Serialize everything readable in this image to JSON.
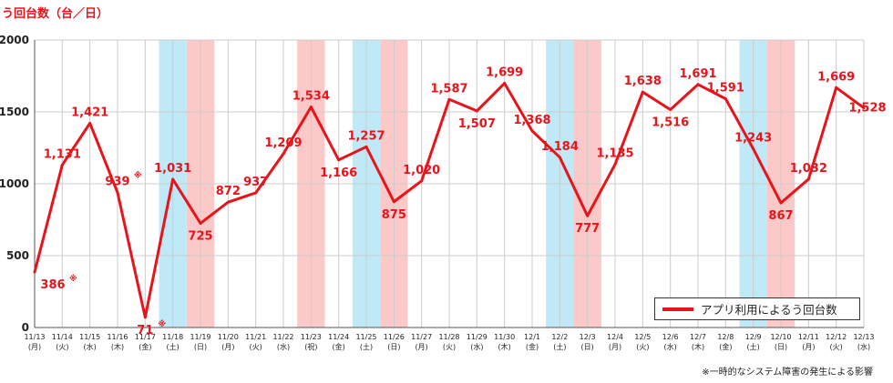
{
  "y_title": "う回台数（台／日）",
  "footnote": "※一時的なシステム障害の発生による影響",
  "legend_label": "アプリ利用によるう回台数",
  "colors": {
    "line": "#e8141b",
    "label": "#e8141b",
    "saturday_band": "#bfe9f7",
    "holiday_band": "#fcc9c9",
    "grid": "#cccccc"
  },
  "chart_data": {
    "type": "line",
    "ylim": [
      0,
      2000
    ],
    "y_ticks": [
      "0",
      "500",
      "1000",
      "1500",
      "2000"
    ],
    "y_tick_values": [
      0,
      500,
      1000,
      1500,
      2000
    ],
    "grid": true,
    "legend_position": "bottom-right",
    "x": [
      {
        "date": "11/13",
        "day": "(月)"
      },
      {
        "date": "11/14",
        "day": "(火)"
      },
      {
        "date": "11/15",
        "day": "(水)"
      },
      {
        "date": "11/16",
        "day": "(木)"
      },
      {
        "date": "11/17",
        "day": "(金)"
      },
      {
        "date": "11/18",
        "day": "(土)"
      },
      {
        "date": "11/19",
        "day": "(日)"
      },
      {
        "date": "11/20",
        "day": "(月)"
      },
      {
        "date": "11/21",
        "day": "(火)"
      },
      {
        "date": "11/22",
        "day": "(水)"
      },
      {
        "date": "11/23",
        "day": "(祝)"
      },
      {
        "date": "11/24",
        "day": "(金)"
      },
      {
        "date": "11/25",
        "day": "(土)"
      },
      {
        "date": "11/26",
        "day": "(日)"
      },
      {
        "date": "11/27",
        "day": "(月)"
      },
      {
        "date": "11/28",
        "day": "(火)"
      },
      {
        "date": "11/29",
        "day": "(水)"
      },
      {
        "date": "11/30",
        "day": "(木)"
      },
      {
        "date": "12/1",
        "day": "(金)"
      },
      {
        "date": "12/2",
        "day": "(土)"
      },
      {
        "date": "12/3",
        "day": "(日)"
      },
      {
        "date": "12/4",
        "day": "(月)"
      },
      {
        "date": "12/5",
        "day": "(火)"
      },
      {
        "date": "12/6",
        "day": "(水)"
      },
      {
        "date": "12/7",
        "day": "(木)"
      },
      {
        "date": "12/8",
        "day": "(金)"
      },
      {
        "date": "12/9",
        "day": "(土)"
      },
      {
        "date": "12/10",
        "day": "(日)"
      },
      {
        "date": "12/11",
        "day": "(月)"
      },
      {
        "date": "12/12",
        "day": "(火)"
      },
      {
        "date": "12/13",
        "day": "(水)"
      }
    ],
    "series": [
      {
        "name": "アプリ利用によるう回台数",
        "values": [
          386,
          1131,
          1421,
          939,
          71,
          1031,
          725,
          872,
          937,
          1209,
          1534,
          1166,
          1257,
          875,
          1020,
          1587,
          1507,
          1699,
          1368,
          1184,
          777,
          1135,
          1638,
          1516,
          1691,
          1591,
          1243,
          867,
          1032,
          1669,
          1528
        ],
        "labels": [
          "386",
          "1,131",
          "1,421",
          "939",
          "71",
          "1,031",
          "725",
          "872",
          "937",
          "1,209",
          "1,534",
          "1,166",
          "1,257",
          "875",
          "1,020",
          "1,587",
          "1,507",
          "1,699",
          "1,368",
          "1,184",
          "777",
          "1,135",
          "1,638",
          "1,516",
          "1,691",
          "1,591",
          "1,243",
          "867",
          "1,032",
          "1,669",
          "1,528"
        ],
        "asterisk": [
          true,
          false,
          false,
          true,
          true,
          false,
          false,
          false,
          false,
          false,
          false,
          false,
          false,
          false,
          false,
          false,
          false,
          false,
          false,
          false,
          false,
          false,
          false,
          false,
          false,
          false,
          false,
          false,
          false,
          false,
          false
        ]
      }
    ],
    "saturday_indices": [
      5,
      12,
      19,
      26
    ],
    "holiday_indices": [
      6,
      10,
      13,
      20,
      27
    ],
    "asterisk_mark": "※"
  }
}
